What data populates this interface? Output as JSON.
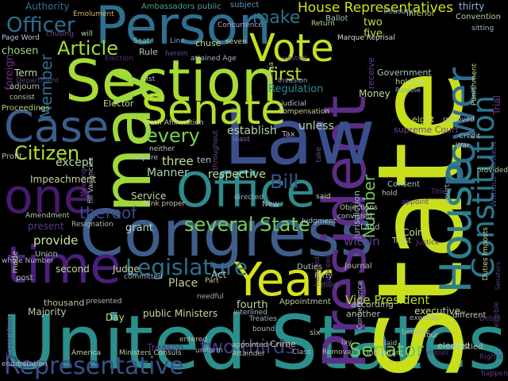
{
  "background": "#000000",
  "words": [
    {
      "text": "United States",
      "color": "#2b8f8c"
    },
    {
      "text": "State",
      "color": "#c9df1c"
    },
    {
      "text": "Congress",
      "color": "#3f5d8a"
    },
    {
      "text": "President",
      "color": "#5b2d86"
    },
    {
      "text": "Law",
      "color": "#3a4f8b"
    },
    {
      "text": "Person",
      "color": "#2e6f8f"
    },
    {
      "text": "Section",
      "color": "#a8db34"
    },
    {
      "text": "Office",
      "color": "#2f8a8c"
    },
    {
      "text": "time",
      "color": "#4a1f7e"
    },
    {
      "text": "may",
      "color": "#9ed93a"
    },
    {
      "text": "Year",
      "color": "#d7e21a"
    },
    {
      "text": "House",
      "color": "#2d7f8d"
    },
    {
      "text": "Senate",
      "color": "#b5de2b"
    },
    {
      "text": "one",
      "color": "#471a6e"
    },
    {
      "text": "Case",
      "color": "#3a5e8c"
    },
    {
      "text": "Vote",
      "color": "#c7e020"
    },
    {
      "text": "Power",
      "color": "#2f6b8e"
    },
    {
      "text": "Constitution",
      "color": "#2a788e"
    },
    {
      "text": "House Representatives",
      "color": "#d2e21b"
    },
    {
      "text": "Representative",
      "color": "#3d4e8a"
    },
    {
      "text": "Legislature",
      "color": "#2d6f8e"
    },
    {
      "text": "several State",
      "color": "#73d055"
    },
    {
      "text": "Senator",
      "color": "#6ccd59"
    },
    {
      "text": "two thirds",
      "color": "#443a83"
    },
    {
      "text": "Vice President",
      "color": "#b8de29"
    },
    {
      "text": "Officer",
      "color": "#2e6e8e"
    },
    {
      "text": "Article",
      "color": "#a2da37"
    },
    {
      "text": "Citizen",
      "color": "#b0dd2f"
    },
    {
      "text": "every",
      "color": "#7ad151"
    },
    {
      "text": "Bill",
      "color": "#3b518b"
    },
    {
      "text": "thereof",
      "color": "#3e4a89"
    },
    {
      "text": "first",
      "color": "#c2df23"
    },
    {
      "text": "make",
      "color": "#2c728e"
    },
    {
      "text": "Member",
      "color": "#2f6c8e"
    },
    {
      "text": "Number",
      "color": "#6ccd5a"
    },
    {
      "text": "Authority",
      "color": "#2c728e"
    },
    {
      "text": "Ambassadors public",
      "color": "#4e9f8a"
    },
    {
      "text": "subject",
      "color": "#6b8fc5"
    },
    {
      "text": "thirty",
      "color": "#8cb5d8"
    },
    {
      "text": "Emolument",
      "color": "#c8b860"
    },
    {
      "text": "Ballot",
      "color": "#a2c8c0"
    },
    {
      "text": "inferior",
      "color": "#b8d070"
    },
    {
      "text": "Convention",
      "color": "#a8d19e"
    },
    {
      "text": "Treasury",
      "color": "#8aa7cf"
    },
    {
      "text": "Concurrence",
      "color": "#b4a7d1"
    },
    {
      "text": "Return",
      "color": "#c0d090"
    },
    {
      "text": "Page Word",
      "color": "#b8c8e0"
    },
    {
      "text": "chusing",
      "color": "#6c4a8e"
    },
    {
      "text": "will",
      "color": "#a7d7a5"
    },
    {
      "text": "Seat",
      "color": "#8fc8a8"
    },
    {
      "text": "Line",
      "color": "#7da0cc"
    },
    {
      "text": "chuse",
      "color": "#c8d880"
    },
    {
      "text": "seven",
      "color": "#d0d890"
    },
    {
      "text": "Marque Reprisal",
      "color": "#d8d8d0"
    },
    {
      "text": "two",
      "color": "#c6df3a"
    },
    {
      "text": "five",
      "color": "#b9dd3a"
    },
    {
      "text": "sitting",
      "color": "#a8b8c0"
    },
    {
      "text": "Trial",
      "color": "#6a3d8e"
    },
    {
      "text": "chosen",
      "color": "#a8d08e"
    },
    {
      "text": "Term",
      "color": "#c0d8b0"
    },
    {
      "text": "Department",
      "color": "#5d3d7e"
    },
    {
      "text": "Rule",
      "color": "#b0c8b0"
    },
    {
      "text": "herein",
      "color": "#6a4a8e"
    },
    {
      "text": "Election",
      "color": "#5a2e7e"
    },
    {
      "text": "attained Age",
      "color": "#b0a8d0"
    },
    {
      "text": "vested",
      "color": "#6a3d8e"
    },
    {
      "text": "Militia",
      "color": "#a0c0a0"
    },
    {
      "text": "Invasion",
      "color": "#80a0c8"
    },
    {
      "text": "Regulation",
      "color": "#2c8d8c"
    },
    {
      "text": "receive",
      "color": "#6a3e8e"
    },
    {
      "text": "Government",
      "color": "#a8c8b0"
    },
    {
      "text": "holding",
      "color": "#c0d890"
    },
    {
      "text": "Purpose",
      "color": "#7ab0c0"
    },
    {
      "text": "Punishment",
      "color": "#c8d880"
    },
    {
      "text": "foreign",
      "color": "#6f2f8e"
    },
    {
      "text": "adjourn",
      "color": "#c0c8a0"
    },
    {
      "text": "consist",
      "color": "#b8c0a0"
    },
    {
      "text": "list",
      "color": "#b0b8c8"
    },
    {
      "text": "Proceedings",
      "color": "#b0d070"
    },
    {
      "text": "Elector",
      "color": "#c8d890"
    },
    {
      "text": "judicial",
      "color": "#b0c0d0"
    },
    {
      "text": "Compensation",
      "color": "#c8d0a0"
    },
    {
      "text": "Money",
      "color": "#b8d8a0"
    },
    {
      "text": "eight",
      "color": "#c8e040"
    },
    {
      "text": "removed",
      "color": "#a8b8d0"
    },
    {
      "text": "supreme Court",
      "color": "#6a4a8e"
    },
    {
      "text": "unless",
      "color": "#b8d8b0"
    },
    {
      "text": "Credit",
      "color": "#a8c0c8"
    },
    {
      "text": "War",
      "color": "#c0c8a0"
    },
    {
      "text": "Oath Affirmation",
      "color": "#c8d0a0"
    },
    {
      "text": "neither",
      "color": "#c0c8b0"
    },
    {
      "text": "establish",
      "color": "#b8d0a8"
    },
    {
      "text": "Tax",
      "color": "#b0b8c8"
    },
    {
      "text": "least",
      "color": "#8a6aa8"
    },
    {
      "text": "Profit",
      "color": "#b8b0a0"
    },
    {
      "text": "except",
      "color": "#b8d8a0"
    },
    {
      "text": "three",
      "color": "#c0e0a0"
    },
    {
      "text": "ten",
      "color": "#b0c8d0"
    },
    {
      "text": "take",
      "color": "#6a4a8e"
    },
    {
      "text": "Jurisdiction",
      "color": "#a0b8c8"
    },
    {
      "text": "Without Consent",
      "color": "#3d4f8b"
    },
    {
      "text": "provided",
      "color": "#b0d0a0"
    },
    {
      "text": "Meeting",
      "color": "#6a3e8e"
    },
    {
      "text": "fill Vacancies",
      "color": "#a8c0b8"
    },
    {
      "text": "require",
      "color": "#b0b8d8"
    },
    {
      "text": "throughout",
      "color": "#6a4a8e"
    },
    {
      "text": "Impeachment",
      "color": "#c8d0a0"
    },
    {
      "text": "Manner",
      "color": "#a8d0b0"
    },
    {
      "text": "respective",
      "color": "#b8e0a0"
    },
    {
      "text": "directed",
      "color": "#a0a8c8"
    },
    {
      "text": "said",
      "color": "#c8d8b0"
    },
    {
      "text": "Consent",
      "color": "#a0c8c0"
    },
    {
      "text": "hold",
      "color": "#b0c8b8"
    },
    {
      "text": "Title",
      "color": "#5a3a7e"
    },
    {
      "text": "appoint",
      "color": "#6a3d8e"
    },
    {
      "text": "Court",
      "color": "#a0b8c8"
    },
    {
      "text": "Service",
      "color": "#b8d8a0"
    },
    {
      "text": "think proper",
      "color": "#c0c8b0"
    },
    {
      "text": "New",
      "color": "#b0c0c8"
    },
    {
      "text": "Objections",
      "color": "#c0d0b0"
    },
    {
      "text": "convicted",
      "color": "#b0c0d0"
    },
    {
      "text": "Land",
      "color": "#a8b8c0"
    },
    {
      "text": "Amendment",
      "color": "#b8c8a8"
    },
    {
      "text": "Resignation",
      "color": "#b0b8b0"
    },
    {
      "text": "present",
      "color": "#5a3a7e"
    },
    {
      "text": "made",
      "color": "#c8d0a0"
    },
    {
      "text": "grant",
      "color": "#b8d8c0"
    },
    {
      "text": "Judgment",
      "color": "#a8c0c8"
    },
    {
      "text": "Coin",
      "color": "#c8d890"
    },
    {
      "text": "Trust",
      "color": "#b8d0a0"
    },
    {
      "text": "Justice",
      "color": "#5d3d7e"
    },
    {
      "text": "provide",
      "color": "#c8e0a0"
    },
    {
      "text": "within",
      "color": "#6a3a8e"
    },
    {
      "text": "Duties Imposts",
      "color": "#c8d8a0"
    },
    {
      "text": "Union",
      "color": "#a8c0b0"
    },
    {
      "text": "whole Number",
      "color": "#b0b8c8"
    },
    {
      "text": "proceed",
      "color": "#5a3a7e"
    },
    {
      "text": "Judge",
      "color": "#c8d8a0"
    },
    {
      "text": "second",
      "color": "#c0d8a0"
    },
    {
      "text": "committed",
      "color": "#b0b0c8"
    },
    {
      "text": "hundred",
      "color": "#5a3a7e"
    },
    {
      "text": "Journal",
      "color": "#b8c0b0"
    },
    {
      "text": "Consequence",
      "color": "#a8b8c8"
    },
    {
      "text": "Duties",
      "color": "#a8c0b0"
    },
    {
      "text": "Party",
      "color": "#b0b8c0"
    },
    {
      "text": "third",
      "color": "#6a4a8e"
    },
    {
      "text": "Act",
      "color": "#b8c8b0"
    },
    {
      "text": "Part",
      "color": "#c0c8a8"
    },
    {
      "text": "post",
      "color": "#b0c0b8"
    },
    {
      "text": "thousand",
      "color": "#b8c8a0"
    },
    {
      "text": "presented",
      "color": "#b0b8c0"
    },
    {
      "text": "Place",
      "color": "#c0d0a0"
    },
    {
      "text": "needful",
      "color": "#a0b0b8"
    },
    {
      "text": "fourth",
      "color": "#c0d8a0"
    },
    {
      "text": "Appointment",
      "color": "#b8c8a8"
    },
    {
      "text": "according",
      "color": "#b0c8a8"
    },
    {
      "text": "executive",
      "color": "#c0d8a0"
    },
    {
      "text": "Majority",
      "color": "#b8c8b0"
    },
    {
      "text": "public Ministers",
      "color": "#c8d8a0"
    },
    {
      "text": "interlined",
      "color": "#a8b8c0"
    },
    {
      "text": "another",
      "color": "#b0c0b0"
    },
    {
      "text": "exercise",
      "color": "#a8b0b8"
    },
    {
      "text": "different",
      "color": "#c0d0b0"
    },
    {
      "text": "Day",
      "color": "#c8d890"
    },
    {
      "text": "bound",
      "color": "#b0b8a8"
    },
    {
      "text": "Treaties",
      "color": "#a8b0c0"
    },
    {
      "text": "six",
      "color": "#b8c0a8"
    },
    {
      "text": "Crime",
      "color": "#c8d8a0"
    },
    {
      "text": "lay",
      "color": "#a8b8b0"
    },
    {
      "text": "entitled",
      "color": "#b0c0a8"
    },
    {
      "text": "appointed",
      "color": "#b8c8b0"
    },
    {
      "text": "Expiration",
      "color": "#5a3a7e"
    },
    {
      "text": "laid",
      "color": "#a8b8c0"
    },
    {
      "text": "become",
      "color": "#b0b0c0"
    },
    {
      "text": "Inhabitant",
      "color": "#c0c8b0"
    },
    {
      "text": "Treason",
      "color": "#5a2e7e"
    },
    {
      "text": "entered",
      "color": "#b0c0a8"
    },
    {
      "text": "uniform",
      "color": "#a8b0c8"
    },
    {
      "text": "Attainder",
      "color": "#b8c0b0"
    },
    {
      "text": "four",
      "color": "#c0c8a0"
    },
    {
      "text": "elected",
      "color": "#c0d8a8"
    },
    {
      "text": "Removal",
      "color": "#b0b8b0"
    },
    {
      "text": "Class",
      "color": "#a8b0c0"
    },
    {
      "text": "Ministers Consuls",
      "color": "#b8c8a8"
    },
    {
      "text": "America",
      "color": "#c0d0b0"
    },
    {
      "text": "enumeration",
      "color": "#b0b8c8"
    },
    {
      "text": "Vessel",
      "color": "#5a3a7e"
    },
    {
      "text": "happen",
      "color": "#6a3a8e"
    },
    {
      "text": "eligible",
      "color": "#5a3a7e"
    },
    {
      "text": "Rights",
      "color": "#5a3a7e"
    },
    {
      "text": "Debts",
      "color": "#5a3a7e"
    },
    {
      "text": "Senators",
      "color": "#5a3a7e"
    }
  ]
}
